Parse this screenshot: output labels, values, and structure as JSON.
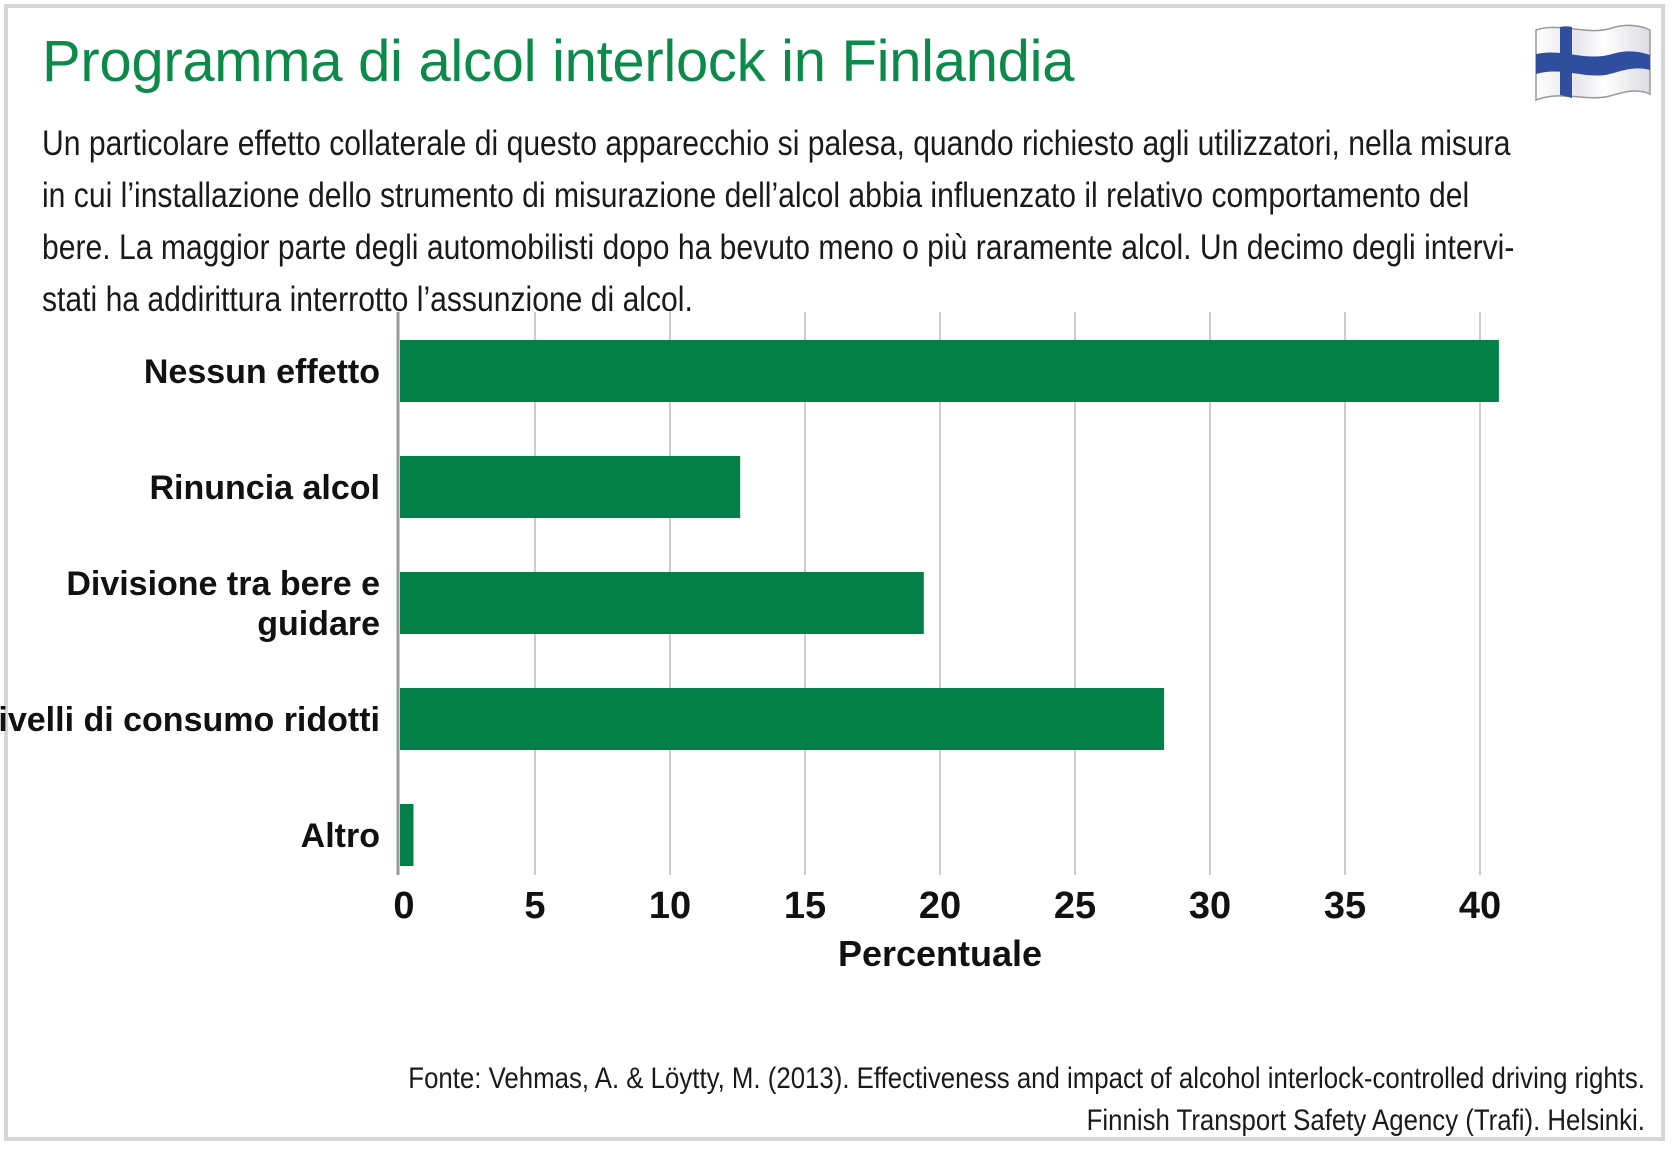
{
  "title": "Programma di alcol interlock in Finlandia",
  "subtitle_lines": [
    "Un particolare effetto collaterale di questo apparecchio si palesa, quando richiesto agli utilizzatori, nella misura",
    "in cui l’installazione dello strumento di misurazione dell’alcol abbia influenzato il relativo comportamento del",
    "bere. La maggior parte degli automobilisti dopo ha bevuto meno o più raramente alcol. Un decimo degli intervi-",
    "stati ha addirittura interrotto l’assunzione di alcol."
  ],
  "flag_icon": "finland-flag-icon",
  "source_lines": [
    "Fonte: Vehmas, A. & Löytty, M. (2013). Effectiveness and impact of alcohol interlock-controlled driving rights.",
    "Finnish Transport Safety Agency (Trafi). Helsinki."
  ],
  "colors": {
    "title": "#0b8a4a",
    "bar": "#038047",
    "grid": "#cccccc",
    "axis": "#9a9a9a",
    "frame": "#d6d6d6"
  },
  "chart_data": {
    "type": "bar",
    "orientation": "horizontal",
    "categories": [
      [
        "Nessun effetto"
      ],
      [
        "Rinuncia alcol"
      ],
      [
        "Divisione tra bere e",
        "guidare"
      ],
      [
        "Livelli di consumo ridotti"
      ],
      [
        "Altro"
      ]
    ],
    "values": [
      40.7,
      12.6,
      19.4,
      28.3,
      0.5
    ],
    "xlabel": "Percentuale",
    "ylabel": "",
    "xlim": [
      0,
      40
    ],
    "xticks": [
      0,
      5,
      10,
      15,
      20,
      25,
      30,
      35,
      40
    ],
    "grid": true,
    "legend": "none"
  }
}
